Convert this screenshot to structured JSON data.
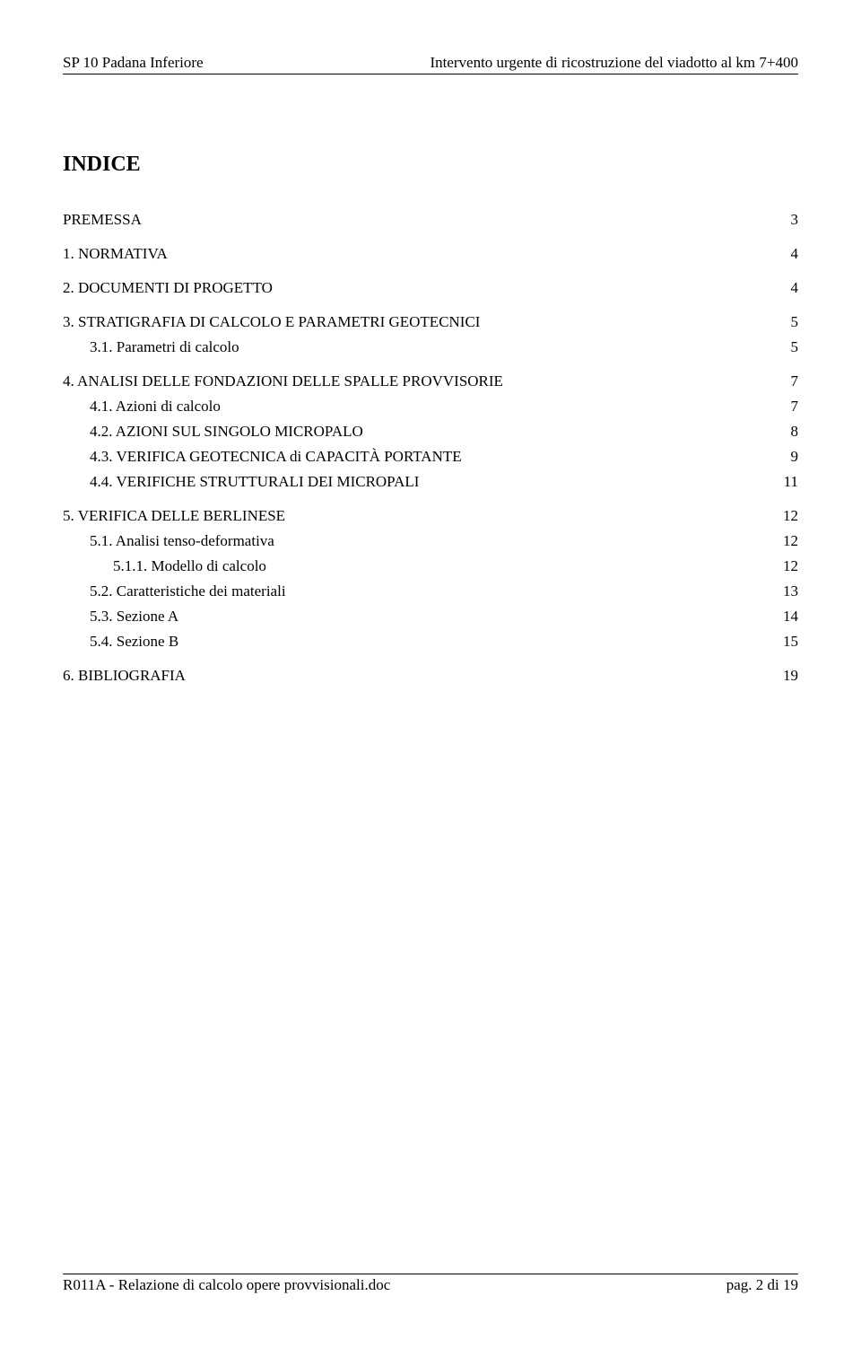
{
  "header": {
    "left": "SP 10 Padana Inferiore",
    "right": "Intervento urgente di ricostruzione del viadotto al km 7+400"
  },
  "title": "INDICE",
  "toc": [
    {
      "level": 1,
      "label": "PREMESSA",
      "page": "3"
    },
    {
      "level": 1,
      "label": "1.   NORMATIVA",
      "page": "4"
    },
    {
      "level": 1,
      "label": "2.   DOCUMENTI DI PROGETTO",
      "page": "4"
    },
    {
      "level": 1,
      "label": "3.   STRATIGRAFIA DI CALCOLO E PARAMETRI GEOTECNICI",
      "page": "5"
    },
    {
      "level": 2,
      "label": "3.1.   Parametri di calcolo",
      "page": "5"
    },
    {
      "level": 1,
      "label": "4.   ANALISI DELLE FONDAZIONI DELLE SPALLE PROVVISORIE",
      "page": "7"
    },
    {
      "level": 2,
      "label": "4.1.   Azioni di calcolo",
      "page": "7"
    },
    {
      "level": 2,
      "label": "4.2.   AZIONI SUL SINGOLO MICROPALO",
      "page": "8"
    },
    {
      "level": 2,
      "label": "4.3.   VERIFICA GEOTECNICA di CAPACITÀ PORTANTE",
      "page": "9"
    },
    {
      "level": 2,
      "label": "4.4.   VERIFICHE STRUTTURALI DEI MICROPALI",
      "page": "11"
    },
    {
      "level": 1,
      "label": "5.   VERIFICA DELLE BERLINESE",
      "page": "12"
    },
    {
      "level": 2,
      "label": "5.1.   Analisi tenso-deformativa",
      "page": "12"
    },
    {
      "level": 3,
      "label": "5.1.1.    Modello di calcolo",
      "page": "12"
    },
    {
      "level": 2,
      "label": "5.2.   Caratteristiche dei materiali",
      "page": "13"
    },
    {
      "level": 2,
      "label": "5.3.   Sezione A",
      "page": "14"
    },
    {
      "level": 2,
      "label": "5.4.   Sezione B",
      "page": "15"
    },
    {
      "level": 1,
      "label": "6.   BIBLIOGRAFIA",
      "page": "19"
    }
  ],
  "footer": {
    "left": "R011A - Relazione di calcolo opere provvisionali.doc",
    "right": "pag.  2 di 19"
  }
}
